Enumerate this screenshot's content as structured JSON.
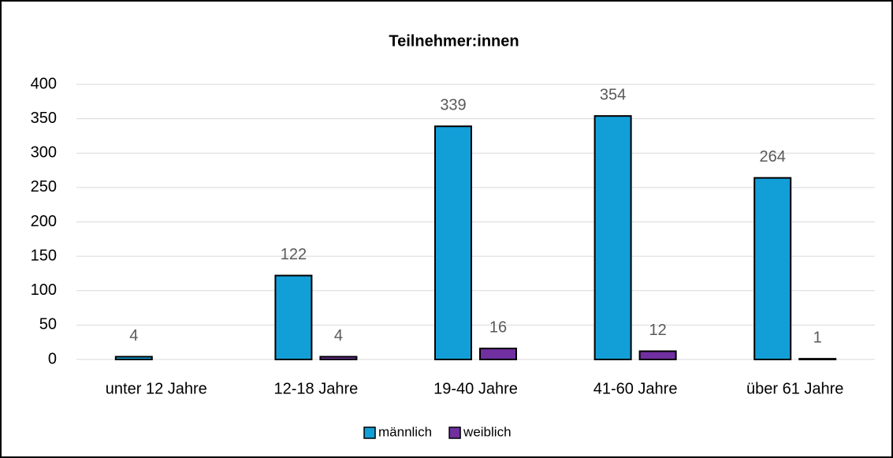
{
  "chart_data": {
    "type": "bar",
    "title": "Teilnehmer:innen",
    "categories": [
      "unter 12 Jahre",
      "12-18 Jahre",
      "19-40 Jahre",
      "41-60 Jahre",
      "über 61 Jahre"
    ],
    "series": [
      {
        "name": "männlich",
        "color": "#129fd8",
        "values": [
          4,
          122,
          339,
          354,
          264
        ]
      },
      {
        "name": "weiblich",
        "color": "#7030a0",
        "values": [
          null,
          4,
          16,
          12,
          1
        ]
      }
    ],
    "ylim": [
      0,
      400
    ],
    "yticks": [
      0,
      50,
      100,
      150,
      200,
      250,
      300,
      350,
      400
    ],
    "grid": true,
    "legend": "bottom"
  }
}
